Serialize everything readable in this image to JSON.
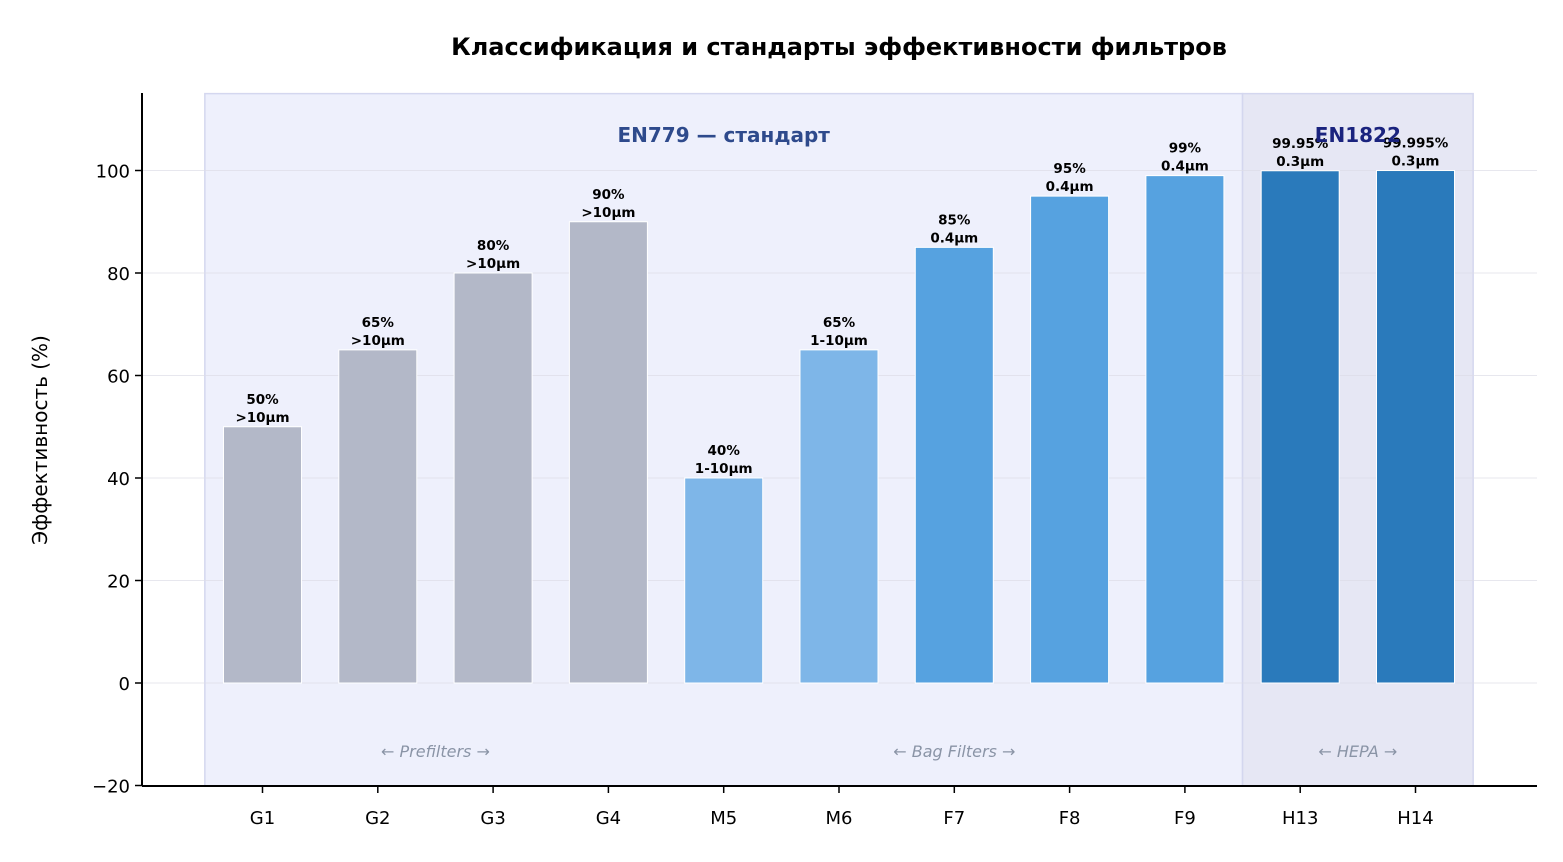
{
  "chart_data": {
    "type": "bar",
    "title": "Классификация и стандарты эффективности фильтров",
    "xlabel": "",
    "ylabel": "Эффективность (%)",
    "ylim": [
      -20,
      115
    ],
    "yticks": [
      -20,
      0,
      20,
      40,
      60,
      80,
      100
    ],
    "grid": "horizontal",
    "categories": [
      "G1",
      "G2",
      "G3",
      "G4",
      "M5",
      "M6",
      "F7",
      "F8",
      "F9",
      "H13",
      "H14"
    ],
    "values": [
      50,
      65,
      80,
      90,
      40,
      65,
      85,
      95,
      99,
      99.95,
      99.995
    ],
    "data_labels": [
      [
        "50%",
        ">10μm"
      ],
      [
        "65%",
        ">10μm"
      ],
      [
        "80%",
        ">10μm"
      ],
      [
        "90%",
        ">10μm"
      ],
      [
        "40%",
        "1-10μm"
      ],
      [
        "65%",
        "1-10μm"
      ],
      [
        "85%",
        "0.4μm"
      ],
      [
        "95%",
        "0.4μm"
      ],
      [
        "99%",
        "0.4μm"
      ],
      [
        "99.95%",
        "0.3μm"
      ],
      [
        "99.995%",
        "0.3μm"
      ]
    ],
    "colors": [
      "#b3b8c8",
      "#b3b8c8",
      "#b3b8c8",
      "#b3b8c8",
      "#7eb6e8",
      "#7eb6e8",
      "#56a2e0",
      "#56a2e0",
      "#56a2e0",
      "#2a7abb",
      "#2a7abb"
    ],
    "bands": [
      {
        "label": "EN779 — стандарт",
        "from": 0,
        "to": 8,
        "fill": "#eef0fc",
        "label_color": "#2e4a8c"
      },
      {
        "label": "EN1822",
        "from": 9,
        "to": 10,
        "fill": "#e6e7f4",
        "label_color": "#1a237e"
      }
    ],
    "groups": [
      {
        "label": "← Prefilters →",
        "from": 0,
        "to": 3
      },
      {
        "label": "← Bag Filters →",
        "from": 4,
        "to": 8
      },
      {
        "label": "← HEPA →",
        "from": 9,
        "to": 10
      }
    ]
  }
}
